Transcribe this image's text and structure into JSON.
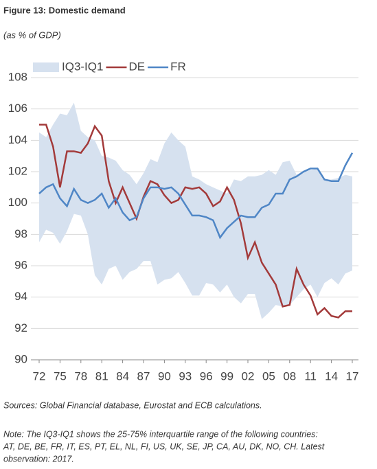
{
  "chart_data": {
    "type": "line",
    "title": "Figure 13: Domestic demand",
    "subtitle": "(as % of GDP)",
    "source": "Sources: Global Financial database, Eurostat and ECB calculations.",
    "note": [
      "Note: The IQ3-IQ1 shows the 25-75% interquartile range of the following countries:",
      "AT, DE, BE, FR, IT, ES, PT, EL, NL, FI, US, UK, SE, JP, CA, AU, DK, NO, CH. Latest",
      "observation: 2017."
    ],
    "categories": [
      "72",
      null,
      null,
      "75",
      null,
      null,
      "78",
      null,
      null,
      "81",
      null,
      null,
      "84",
      null,
      null,
      "87",
      null,
      null,
      "90",
      null,
      null,
      "93",
      null,
      null,
      "96",
      null,
      null,
      "99",
      null,
      null,
      "02",
      null,
      null,
      "05",
      null,
      null,
      "08",
      null,
      null,
      "11",
      null,
      null,
      "14",
      null,
      null,
      "17"
    ],
    "ylim": [
      90,
      108
    ],
    "yticks": [
      90,
      92,
      94,
      96,
      98,
      100,
      102,
      104,
      106,
      108
    ],
    "grid": true,
    "series": [
      {
        "name": "IQ3-IQ1",
        "color": "#d6e1ef",
        "upper": [
          104.5,
          104.2,
          105.0,
          105.7,
          105.6,
          106.4,
          104.6,
          104.2,
          104.0,
          103.0,
          102.9,
          102.7,
          102.1,
          101.8,
          101.2,
          101.9,
          102.8,
          102.6,
          103.8,
          104.5,
          104.0,
          103.6,
          101.7,
          101.5,
          101.2,
          101.0,
          100.8,
          100.6,
          101.5,
          101.4,
          101.7,
          101.7,
          101.8,
          102.1,
          101.8,
          102.6,
          102.7,
          101.8,
          102.0,
          102.1,
          102.2,
          101.5,
          101.5,
          101.6,
          101.8,
          101.7
        ],
        "lower": [
          97.5,
          98.3,
          98.1,
          97.4,
          98.2,
          99.3,
          99.2,
          98.0,
          95.4,
          94.8,
          95.8,
          96.0,
          95.1,
          95.6,
          95.8,
          96.3,
          96.3,
          94.8,
          95.1,
          95.2,
          95.6,
          94.9,
          94.1,
          94.1,
          94.9,
          94.8,
          94.3,
          94.8,
          94.0,
          93.6,
          94.2,
          94.2,
          92.6,
          93.0,
          93.5,
          93.4,
          93.5,
          94.0,
          94.5,
          94.8,
          94.0,
          94.9,
          95.2,
          94.8,
          95.5,
          95.7
        ]
      },
      {
        "name": "DE",
        "color": "#a33a3a",
        "values": [
          105.0,
          105.0,
          103.6,
          101.0,
          103.3,
          103.3,
          103.2,
          103.8,
          104.9,
          104.3,
          101.4,
          100.0,
          101.0,
          100.0,
          99.0,
          100.4,
          101.4,
          101.2,
          100.5,
          100.0,
          100.2,
          101.0,
          100.9,
          101.0,
          100.6,
          99.8,
          100.1,
          101.0,
          100.2,
          98.7,
          96.5,
          97.5,
          96.2,
          95.5,
          94.8,
          93.4,
          93.5,
          95.8,
          94.8,
          94.1,
          92.9,
          93.3,
          92.8,
          92.7,
          93.1,
          93.1
        ]
      },
      {
        "name": "FR",
        "color": "#4f86c6",
        "values": [
          100.6,
          101.0,
          101.2,
          100.3,
          99.8,
          100.9,
          100.2,
          100.0,
          100.2,
          100.6,
          99.7,
          100.3,
          99.4,
          98.9,
          99.1,
          100.3,
          101.0,
          101.0,
          100.9,
          101.0,
          100.6,
          99.9,
          99.2,
          99.2,
          99.1,
          98.9,
          97.8,
          98.4,
          98.8,
          99.2,
          99.1,
          99.1,
          99.7,
          99.9,
          100.6,
          100.6,
          101.5,
          101.7,
          102.0,
          102.2,
          102.2,
          101.5,
          101.4,
          101.4,
          102.4,
          103.2
        ]
      }
    ]
  }
}
